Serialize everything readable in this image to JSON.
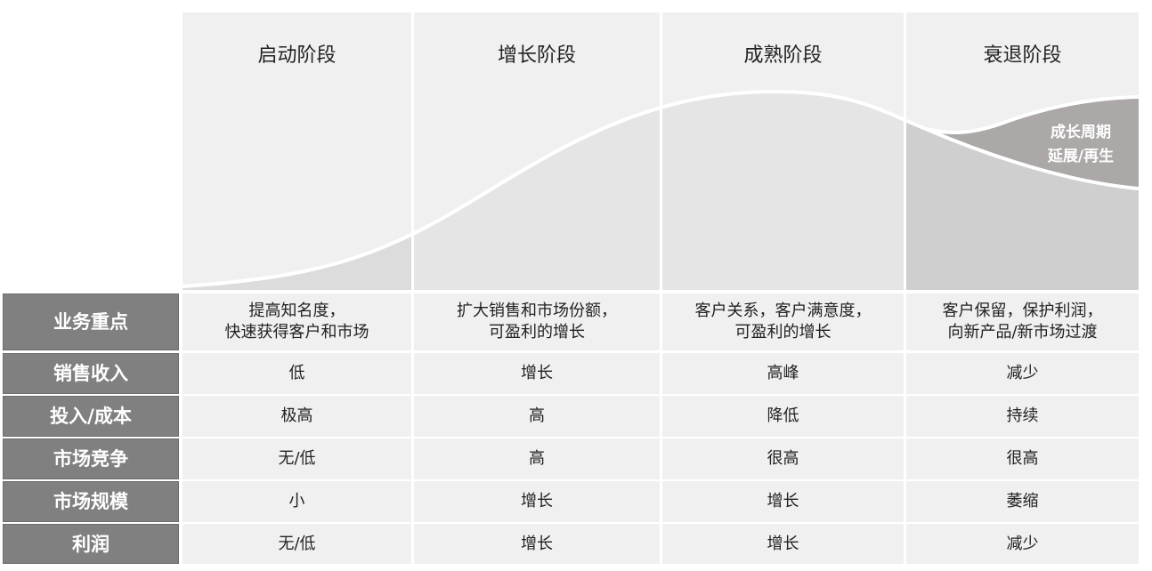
{
  "stages": [
    "启动阶段",
    "增长阶段",
    "成熟阶段",
    "衰退阶段"
  ],
  "regeneration_label": [
    "成长周期",
    "延展/再生"
  ],
  "colors": {
    "panel_bg": "#f0f0f0",
    "curve_fill_startup": "#dcdcdc",
    "curve_fill_mid": "#e5e5e5",
    "curve_fill_decline": "#cfcfcf",
    "regen_fill": "#aba8a7",
    "row_label_bg": "#808080"
  },
  "table": {
    "rows": [
      {
        "label": "业务重点",
        "values": [
          "提高知名度，\n快速获得客户和市场",
          "扩大销售和市场份额，\n可盈利的增长",
          "客户关系，客户满意度，\n可盈利的增长",
          "客户保留，保护利润，\n向新产品/新市场过渡"
        ]
      },
      {
        "label": "销售收入",
        "values": [
          "低",
          "增长",
          "高峰",
          "减少"
        ]
      },
      {
        "label": "投入/成本",
        "values": [
          "极高",
          "高",
          "降低",
          "持续"
        ]
      },
      {
        "label": "市场竞争",
        "values": [
          "无/低",
          "高",
          "很高",
          "很高"
        ]
      },
      {
        "label": "市场规模",
        "values": [
          "小",
          "增长",
          "增长",
          "萎缩"
        ]
      },
      {
        "label": "利润",
        "values": [
          "无/低",
          "增长",
          "增长",
          "减少"
        ]
      }
    ]
  }
}
